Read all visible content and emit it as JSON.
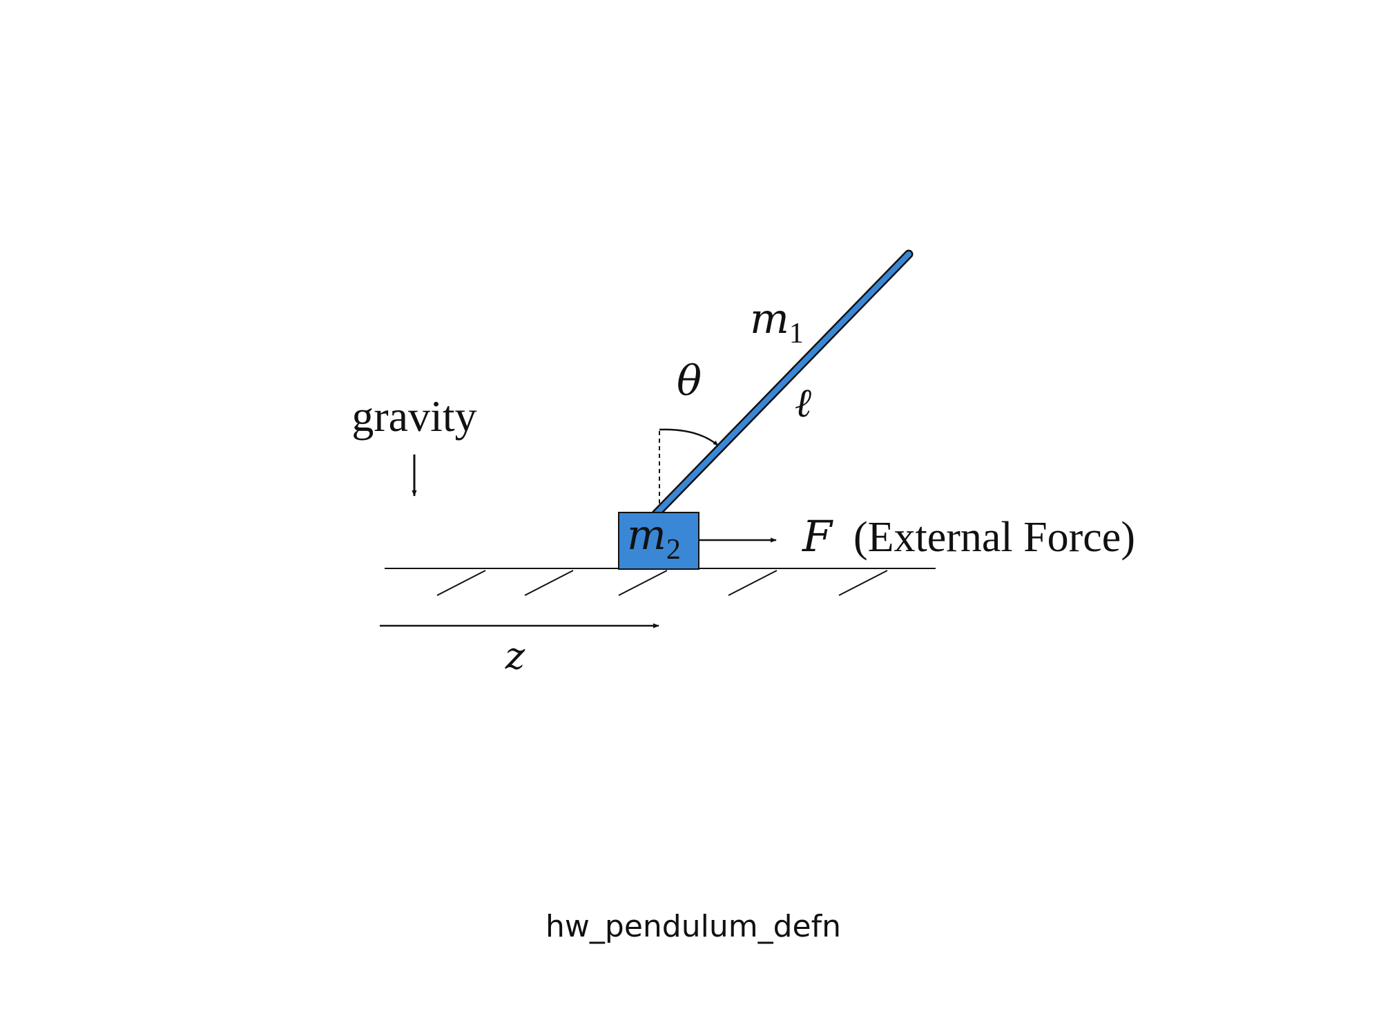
{
  "labels": {
    "gravity": "gravity",
    "theta": "θ",
    "m1_base": "m",
    "m1_sub": "1",
    "ell": "ℓ",
    "m2_base": "m",
    "m2_sub": "2",
    "force_symbol": "F",
    "force_text": "(External Force)",
    "z": "z"
  },
  "caption": "hw_pendulum_defn",
  "colors": {
    "pendulum_fill": "#3a87d6",
    "cart_fill": "#3a87d6",
    "stroke": "#111111"
  }
}
